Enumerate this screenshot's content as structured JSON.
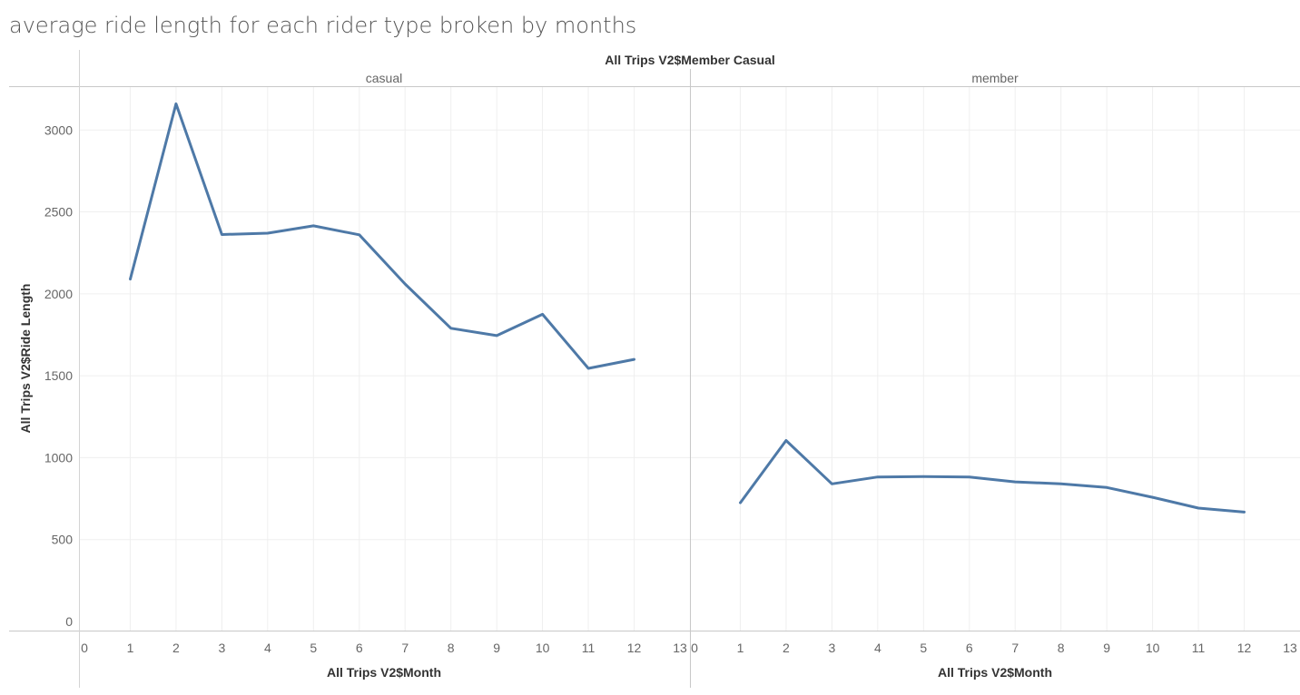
{
  "title": "average ride length for each rider type broken by months",
  "chart_data": {
    "type": "line",
    "header": "All Trips V2$Member Casual",
    "xlabel": "All Trips V2$Month",
    "ylabel": "All Trips V2$Ride Length",
    "xlim": [
      0,
      13
    ],
    "ylim": [
      0,
      3200
    ],
    "x_ticks": [
      0,
      1,
      2,
      3,
      4,
      5,
      6,
      7,
      8,
      9,
      10,
      11,
      12,
      13
    ],
    "y_ticks": [
      0,
      500,
      1000,
      1500,
      2000,
      2500,
      3000
    ],
    "grid": true,
    "line_color": "#4e79a7",
    "panels": [
      {
        "name": "casual",
        "x": [
          1,
          2,
          3,
          4,
          5,
          6,
          7,
          8,
          9,
          10,
          11,
          12
        ],
        "values": [
          2090,
          3160,
          2362,
          2370,
          2415,
          2360,
          2060,
          1790,
          1745,
          1875,
          1545,
          1600
        ]
      },
      {
        "name": "member",
        "x": [
          1,
          2,
          3,
          4,
          5,
          6,
          7,
          8,
          9,
          10,
          11,
          12
        ],
        "values": [
          725,
          1105,
          840,
          882,
          885,
          882,
          852,
          840,
          818,
          758,
          692,
          668
        ]
      }
    ]
  }
}
